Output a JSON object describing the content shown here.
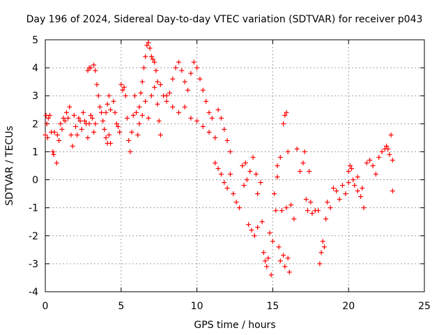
{
  "chart_data": {
    "type": "scatter",
    "title": "Day 196 of 2024, Sidereal Day-to-day VTEC variation (SDTVAR) for receiver p043",
    "xlabel": "GPS time / hours",
    "ylabel": "SDTVAR / TECUs",
    "xlim": [
      0,
      25
    ],
    "ylim": [
      -4,
      5
    ],
    "xticks": [
      0,
      5,
      10,
      15,
      20,
      25
    ],
    "yticks": [
      -4,
      -3,
      -2,
      -1,
      0,
      1,
      2,
      3,
      4,
      5
    ],
    "xtick_labels": [
      "0",
      "5",
      "10",
      "15",
      "20",
      "25"
    ],
    "ytick_labels": [
      "-4",
      "-3",
      "-2",
      "-1",
      "0",
      "1",
      "2",
      "3",
      "4",
      "5"
    ],
    "grid": true,
    "marker": "+",
    "marker_color": "#ff0000",
    "series": [
      {
        "name": "SDTVAR",
        "points": [
          [
            0.0,
            1.6
          ],
          [
            0.05,
            2.3
          ],
          [
            0.1,
            2.0
          ],
          [
            0.15,
            1.5
          ],
          [
            0.2,
            2.2
          ],
          [
            0.3,
            2.3
          ],
          [
            0.4,
            1.7
          ],
          [
            0.5,
            1.0
          ],
          [
            0.55,
            0.9
          ],
          [
            0.6,
            1.7
          ],
          [
            0.75,
            0.6
          ],
          [
            0.8,
            1.6
          ],
          [
            0.9,
            1.4
          ],
          [
            1.0,
            2.0
          ],
          [
            1.1,
            1.8
          ],
          [
            1.2,
            2.2
          ],
          [
            1.3,
            2.1
          ],
          [
            1.4,
            2.4
          ],
          [
            1.5,
            2.2
          ],
          [
            1.6,
            2.6
          ],
          [
            1.7,
            1.6
          ],
          [
            1.8,
            1.2
          ],
          [
            1.9,
            2.3
          ],
          [
            2.0,
            1.9
          ],
          [
            2.1,
            1.6
          ],
          [
            2.2,
            2.2
          ],
          [
            2.3,
            2.1
          ],
          [
            2.4,
            1.8
          ],
          [
            2.5,
            2.4
          ],
          [
            2.6,
            2.1
          ],
          [
            2.7,
            2.0
          ],
          [
            2.8,
            1.5
          ],
          [
            2.9,
            2.0
          ],
          [
            3.0,
            2.3
          ],
          [
            3.1,
            2.2
          ],
          [
            3.2,
            1.7
          ],
          [
            3.3,
            2.0
          ],
          [
            2.8,
            3.9
          ],
          [
            2.9,
            4.0
          ],
          [
            3.0,
            4.0
          ],
          [
            3.2,
            4.1
          ],
          [
            3.3,
            3.9
          ],
          [
            3.4,
            3.4
          ],
          [
            3.5,
            3.0
          ],
          [
            3.6,
            2.6
          ],
          [
            3.7,
            2.4
          ],
          [
            3.8,
            2.1
          ],
          [
            3.9,
            1.8
          ],
          [
            4.0,
            1.5
          ],
          [
            4.1,
            1.3
          ],
          [
            4.2,
            1.6
          ],
          [
            4.3,
            1.3
          ],
          [
            4.0,
            2.4
          ],
          [
            4.1,
            2.7
          ],
          [
            4.2,
            3.0
          ],
          [
            4.3,
            2.5
          ],
          [
            4.5,
            2.8
          ],
          [
            4.6,
            2.4
          ],
          [
            4.7,
            2.0
          ],
          [
            4.8,
            1.9
          ],
          [
            4.9,
            1.7
          ],
          [
            5.0,
            3.4
          ],
          [
            5.1,
            3.2
          ],
          [
            5.2,
            3.3
          ],
          [
            5.3,
            3.0
          ],
          [
            5.4,
            2.2
          ],
          [
            5.5,
            1.4
          ],
          [
            5.6,
            1.0
          ],
          [
            5.7,
            1.7
          ],
          [
            5.8,
            2.3
          ],
          [
            5.9,
            3.0
          ],
          [
            6.0,
            2.4
          ],
          [
            6.1,
            1.6
          ],
          [
            6.2,
            2.0
          ],
          [
            6.3,
            3.1
          ],
          [
            6.4,
            3.5
          ],
          [
            6.5,
            4.0
          ],
          [
            6.6,
            4.4
          ],
          [
            6.7,
            4.8
          ],
          [
            6.8,
            4.9
          ],
          [
            6.9,
            4.7
          ],
          [
            7.0,
            4.4
          ],
          [
            7.1,
            4.3
          ],
          [
            7.2,
            4.2
          ],
          [
            7.3,
            3.9
          ],
          [
            7.4,
            2.7
          ],
          [
            7.5,
            2.1
          ],
          [
            7.6,
            1.6
          ],
          [
            6.2,
            2.6
          ],
          [
            6.4,
            2.3
          ],
          [
            6.6,
            2.8
          ],
          [
            6.8,
            2.2
          ],
          [
            7.0,
            3.0
          ],
          [
            7.2,
            3.3
          ],
          [
            7.4,
            3.5
          ],
          [
            7.6,
            3.4
          ],
          [
            7.8,
            3.0
          ],
          [
            8.0,
            2.8
          ],
          [
            8.2,
            3.1
          ],
          [
            8.4,
            3.6
          ],
          [
            8.6,
            4.0
          ],
          [
            8.8,
            4.2
          ],
          [
            9.0,
            3.9
          ],
          [
            9.2,
            3.5
          ],
          [
            9.4,
            3.2
          ],
          [
            9.6,
            3.8
          ],
          [
            9.8,
            4.2
          ],
          [
            10.0,
            4.0
          ],
          [
            10.2,
            3.6
          ],
          [
            10.4,
            3.2
          ],
          [
            10.6,
            2.8
          ],
          [
            10.8,
            2.4
          ],
          [
            11.0,
            2.2
          ],
          [
            8.0,
            3.0
          ],
          [
            8.4,
            2.6
          ],
          [
            8.8,
            2.4
          ],
          [
            9.2,
            2.6
          ],
          [
            9.6,
            2.2
          ],
          [
            10.0,
            2.1
          ],
          [
            10.4,
            1.9
          ],
          [
            10.8,
            1.7
          ],
          [
            11.2,
            1.5
          ],
          [
            11.4,
            2.5
          ],
          [
            11.6,
            2.2
          ],
          [
            11.8,
            1.8
          ],
          [
            12.0,
            1.4
          ],
          [
            12.2,
            1.0
          ],
          [
            11.2,
            0.6
          ],
          [
            11.4,
            0.4
          ],
          [
            11.6,
            0.2
          ],
          [
            11.8,
            -0.1
          ],
          [
            12.0,
            -0.3
          ],
          [
            12.2,
            0.2
          ],
          [
            12.4,
            -0.5
          ],
          [
            12.6,
            -0.8
          ],
          [
            12.8,
            -1.0
          ],
          [
            13.0,
            0.5
          ],
          [
            13.1,
            -0.2
          ],
          [
            13.2,
            0.6
          ],
          [
            13.3,
            0.0
          ],
          [
            13.4,
            -1.6
          ],
          [
            13.6,
            -1.8
          ],
          [
            13.8,
            -2.0
          ],
          [
            14.0,
            -1.7
          ],
          [
            13.5,
            0.3
          ],
          [
            13.7,
            0.8
          ],
          [
            13.9,
            0.2
          ],
          [
            14.0,
            -0.5
          ],
          [
            14.2,
            -0.1
          ],
          [
            14.3,
            -1.5
          ],
          [
            14.4,
            -2.6
          ],
          [
            14.5,
            -2.9
          ],
          [
            14.6,
            -3.1
          ],
          [
            14.7,
            -2.8
          ],
          [
            14.8,
            -1.9
          ],
          [
            14.9,
            -3.4
          ],
          [
            15.0,
            -2.2
          ],
          [
            15.1,
            -0.5
          ],
          [
            15.2,
            -1.1
          ],
          [
            15.3,
            0.1
          ],
          [
            15.4,
            -2.4
          ],
          [
            15.5,
            -2.9
          ],
          [
            15.6,
            -1.1
          ],
          [
            15.7,
            -2.7
          ],
          [
            15.8,
            -3.1
          ],
          [
            15.9,
            -1.0
          ],
          [
            16.0,
            -2.8
          ],
          [
            16.1,
            -3.3
          ],
          [
            15.3,
            0.5
          ],
          [
            15.5,
            0.8
          ],
          [
            15.7,
            2.0
          ],
          [
            15.8,
            2.3
          ],
          [
            15.9,
            2.4
          ],
          [
            16.0,
            1.0
          ],
          [
            16.2,
            -0.9
          ],
          [
            16.4,
            -1.4
          ],
          [
            16.6,
            1.1
          ],
          [
            16.8,
            0.3
          ],
          [
            17.0,
            0.6
          ],
          [
            17.1,
            1.0
          ],
          [
            17.2,
            -0.7
          ],
          [
            17.3,
            -1.1
          ],
          [
            17.4,
            0.3
          ],
          [
            17.5,
            -0.8
          ],
          [
            17.6,
            -1.2
          ],
          [
            17.8,
            -1.1
          ],
          [
            18.0,
            -1.1
          ],
          [
            18.1,
            -3.0
          ],
          [
            18.2,
            -2.6
          ],
          [
            18.3,
            -2.2
          ],
          [
            18.4,
            -2.4
          ],
          [
            18.5,
            -1.4
          ],
          [
            18.6,
            -0.8
          ],
          [
            18.8,
            -1.0
          ],
          [
            19.0,
            -0.3
          ],
          [
            19.2,
            -0.4
          ],
          [
            19.4,
            -0.7
          ],
          [
            19.6,
            -0.2
          ],
          [
            19.8,
            -0.5
          ],
          [
            20.0,
            0.3
          ],
          [
            20.1,
            0.5
          ],
          [
            20.2,
            0.4
          ],
          [
            20.4,
            -0.2
          ],
          [
            20.6,
            -0.4
          ],
          [
            20.8,
            -0.6
          ],
          [
            21.0,
            -1.0
          ],
          [
            20.0,
            -0.1
          ],
          [
            20.3,
            0.0
          ],
          [
            20.6,
            0.1
          ],
          [
            20.9,
            -0.3
          ],
          [
            21.2,
            0.6
          ],
          [
            21.4,
            0.7
          ],
          [
            21.6,
            0.5
          ],
          [
            21.8,
            0.2
          ],
          [
            22.0,
            0.8
          ],
          [
            22.2,
            1.0
          ],
          [
            22.4,
            1.1
          ],
          [
            22.5,
            1.2
          ],
          [
            22.6,
            1.1
          ],
          [
            22.7,
            0.9
          ],
          [
            22.8,
            1.6
          ],
          [
            22.9,
            0.7
          ],
          [
            22.9,
            -0.4
          ]
        ]
      }
    ]
  }
}
